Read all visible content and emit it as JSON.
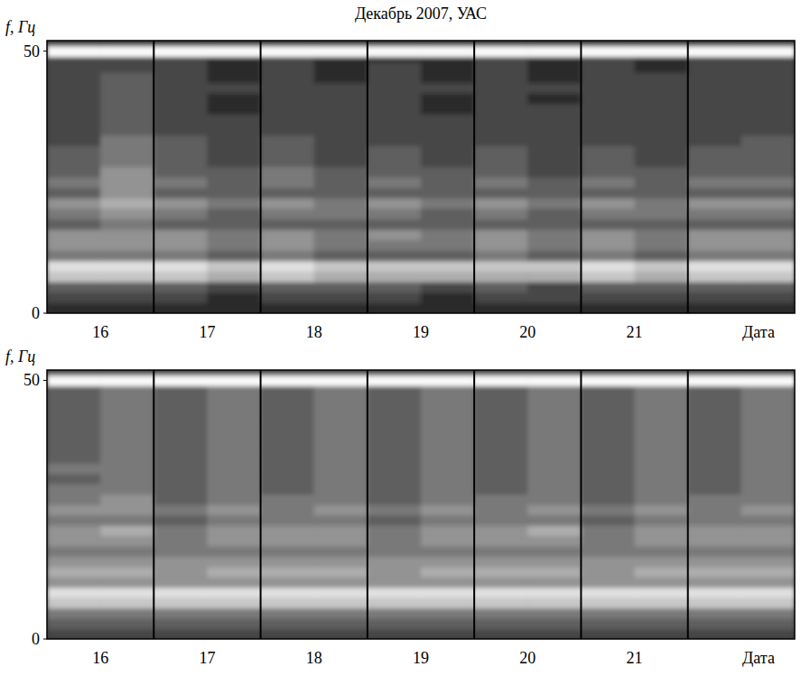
{
  "chart_data": [
    {
      "type": "heatmap",
      "title": "Декабрь 2007, УАС",
      "ylabel": "f, Гц",
      "xlabel": "Дата",
      "xlim": [
        16,
        23
      ],
      "ylim": [
        0,
        52
      ],
      "yticks": [
        0,
        50
      ],
      "xticks": [
        {
          "value": 16.5,
          "label": "16"
        },
        {
          "value": 17.5,
          "label": "17"
        },
        {
          "value": 18.5,
          "label": "18"
        },
        {
          "value": 19.5,
          "label": "19"
        },
        {
          "value": 20.5,
          "label": "20"
        },
        {
          "value": 21.5,
          "label": "21"
        }
      ],
      "day_lines": [
        17,
        18,
        19,
        20,
        21,
        22
      ],
      "grid": true,
      "zlim": [
        0,
        9
      ],
      "x_edges": [
        16,
        16.5,
        17,
        17.5,
        18,
        18.5,
        19,
        19.5,
        20,
        20.5,
        21,
        21.5,
        22,
        22.5,
        23
      ],
      "y_edges": [
        0,
        2,
        4,
        6,
        8,
        10,
        12,
        14,
        16,
        18,
        20,
        22,
        24,
        26,
        28,
        30,
        32,
        34,
        36,
        38,
        40,
        42,
        44,
        46,
        48,
        49,
        51,
        52
      ],
      "cells": [
        [
          1,
          1,
          1,
          1,
          1,
          1,
          1,
          1,
          1,
          1,
          1,
          1,
          1,
          1
        ],
        [
          2,
          2,
          2,
          1,
          2,
          2,
          2,
          1,
          2,
          2,
          2,
          2,
          2,
          2
        ],
        [
          3,
          3,
          3,
          2,
          3,
          3,
          3,
          2,
          3,
          2,
          3,
          3,
          3,
          3
        ],
        [
          7,
          7,
          7,
          6,
          7,
          6,
          6,
          6,
          6,
          6,
          7,
          6,
          7,
          7
        ],
        [
          8,
          8,
          8,
          7,
          8,
          7,
          7,
          7,
          7,
          7,
          8,
          7,
          8,
          8
        ],
        [
          4,
          4,
          4,
          3,
          4,
          3,
          3,
          3,
          4,
          3,
          4,
          3,
          4,
          4
        ],
        [
          5,
          5,
          5,
          4,
          5,
          4,
          4,
          4,
          5,
          4,
          5,
          4,
          5,
          5
        ],
        [
          5,
          5,
          5,
          4,
          5,
          4,
          5,
          4,
          5,
          4,
          5,
          4,
          5,
          5
        ],
        [
          3,
          4,
          3,
          3,
          3,
          3,
          3,
          3,
          3,
          3,
          3,
          3,
          3,
          3
        ],
        [
          4,
          5,
          4,
          3,
          4,
          4,
          4,
          3,
          4,
          3,
          4,
          4,
          4,
          4
        ],
        [
          5,
          6,
          5,
          4,
          5,
          4,
          5,
          4,
          5,
          4,
          5,
          4,
          5,
          5
        ],
        [
          3,
          5,
          3,
          3,
          3,
          3,
          3,
          3,
          3,
          3,
          3,
          3,
          3,
          3
        ],
        [
          4,
          5,
          4,
          3,
          4,
          3,
          4,
          3,
          4,
          3,
          4,
          3,
          4,
          4
        ],
        [
          3,
          5,
          3,
          3,
          4,
          3,
          3,
          3,
          3,
          2,
          3,
          3,
          3,
          3
        ],
        [
          3,
          4,
          3,
          2,
          3,
          2,
          3,
          2,
          3,
          2,
          3,
          2,
          3,
          3
        ],
        [
          3,
          4,
          3,
          2,
          3,
          2,
          3,
          2,
          3,
          2,
          3,
          2,
          3,
          3
        ],
        [
          2,
          4,
          3,
          2,
          3,
          2,
          2,
          2,
          2,
          2,
          2,
          2,
          2,
          3
        ],
        [
          2,
          3,
          2,
          2,
          2,
          2,
          2,
          2,
          2,
          2,
          2,
          2,
          2,
          2
        ],
        [
          2,
          3,
          2,
          2,
          2,
          2,
          2,
          2,
          2,
          2,
          2,
          2,
          2,
          2
        ],
        [
          2,
          3,
          2,
          1,
          2,
          2,
          2,
          1,
          2,
          2,
          2,
          2,
          2,
          2
        ],
        [
          2,
          3,
          2,
          1,
          2,
          2,
          2,
          1,
          2,
          1,
          2,
          2,
          2,
          2
        ],
        [
          2,
          3,
          2,
          2,
          2,
          2,
          2,
          2,
          2,
          2,
          2,
          2,
          2,
          2
        ],
        [
          2,
          3,
          2,
          1,
          2,
          1,
          2,
          1,
          2,
          1,
          2,
          2,
          2,
          2
        ],
        [
          2,
          2,
          2,
          1,
          2,
          1,
          2,
          1,
          2,
          1,
          2,
          1,
          2,
          2
        ],
        [
          2,
          2,
          2,
          1,
          2,
          1,
          1,
          1,
          2,
          1,
          2,
          1,
          2,
          2
        ],
        [
          9,
          9,
          9,
          9,
          9,
          9,
          9,
          9,
          9,
          9,
          9,
          9,
          9,
          9
        ],
        [
          2,
          2,
          2,
          2,
          2,
          2,
          2,
          2,
          2,
          2,
          2,
          2,
          2,
          2
        ]
      ]
    },
    {
      "type": "heatmap",
      "ylabel": "f, Гц",
      "xlabel": "Дата",
      "xlim": [
        16,
        23
      ],
      "ylim": [
        0,
        52
      ],
      "yticks": [
        0,
        50
      ],
      "xticks": [
        {
          "value": 16.5,
          "label": "16"
        },
        {
          "value": 17.5,
          "label": "17"
        },
        {
          "value": 18.5,
          "label": "18"
        },
        {
          "value": 19.5,
          "label": "19"
        },
        {
          "value": 20.5,
          "label": "20"
        },
        {
          "value": 21.5,
          "label": "21"
        }
      ],
      "day_lines": [
        17,
        18,
        19,
        20,
        21,
        22
      ],
      "grid": true,
      "zlim": [
        0,
        9
      ],
      "x_edges": [
        16,
        16.5,
        17,
        17.5,
        18,
        18.5,
        19,
        19.5,
        20,
        20.5,
        21,
        21.5,
        22,
        22.5,
        23
      ],
      "y_edges": [
        0,
        2,
        4,
        6,
        8,
        10,
        12,
        14,
        16,
        18,
        20,
        22,
        24,
        26,
        28,
        30,
        32,
        34,
        36,
        38,
        40,
        42,
        44,
        46,
        48,
        49,
        51,
        52
      ],
      "cells": [
        [
          2,
          2,
          2,
          2,
          2,
          2,
          2,
          2,
          2,
          2,
          2,
          2,
          2,
          2
        ],
        [
          3,
          3,
          3,
          3,
          3,
          3,
          3,
          3,
          3,
          3,
          3,
          3,
          3,
          3
        ],
        [
          4,
          4,
          4,
          4,
          4,
          4,
          4,
          4,
          4,
          4,
          4,
          4,
          4,
          4
        ],
        [
          7,
          7,
          7,
          7,
          7,
          7,
          7,
          7,
          7,
          7,
          7,
          7,
          7,
          7
        ],
        [
          8,
          8,
          8,
          8,
          8,
          8,
          8,
          8,
          8,
          8,
          8,
          8,
          8,
          8
        ],
        [
          5,
          5,
          5,
          5,
          5,
          5,
          5,
          5,
          5,
          5,
          5,
          5,
          5,
          5
        ],
        [
          6,
          6,
          5,
          6,
          6,
          6,
          5,
          6,
          6,
          6,
          5,
          6,
          6,
          6
        ],
        [
          5,
          5,
          5,
          5,
          5,
          5,
          5,
          5,
          5,
          5,
          5,
          5,
          5,
          5
        ],
        [
          4,
          4,
          4,
          4,
          4,
          4,
          4,
          4,
          4,
          4,
          4,
          4,
          4,
          4
        ],
        [
          5,
          5,
          4,
          5,
          5,
          5,
          4,
          5,
          5,
          5,
          4,
          5,
          5,
          5
        ],
        [
          5,
          6,
          4,
          5,
          5,
          5,
          4,
          5,
          5,
          6,
          4,
          5,
          5,
          5
        ],
        [
          4,
          4,
          3,
          4,
          4,
          4,
          3,
          4,
          4,
          4,
          3,
          4,
          4,
          4
        ],
        [
          5,
          5,
          4,
          5,
          4,
          5,
          4,
          5,
          4,
          5,
          4,
          5,
          4,
          5
        ],
        [
          4,
          5,
          3,
          4,
          4,
          4,
          3,
          4,
          4,
          4,
          3,
          4,
          4,
          4
        ],
        [
          4,
          4,
          3,
          4,
          3,
          4,
          3,
          4,
          3,
          4,
          3,
          4,
          3,
          4
        ],
        [
          3,
          4,
          3,
          4,
          3,
          4,
          3,
          4,
          3,
          4,
          3,
          4,
          3,
          4
        ],
        [
          4,
          4,
          3,
          4,
          3,
          4,
          3,
          4,
          3,
          4,
          3,
          4,
          3,
          4
        ],
        [
          3,
          4,
          3,
          4,
          3,
          4,
          3,
          4,
          3,
          4,
          3,
          4,
          3,
          4
        ],
        [
          3,
          4,
          3,
          4,
          3,
          4,
          3,
          4,
          3,
          4,
          3,
          4,
          3,
          4
        ],
        [
          3,
          4,
          3,
          4,
          3,
          4,
          3,
          4,
          3,
          4,
          3,
          4,
          3,
          4
        ],
        [
          3,
          4,
          3,
          4,
          3,
          4,
          3,
          4,
          3,
          4,
          3,
          4,
          3,
          4
        ],
        [
          3,
          4,
          3,
          4,
          3,
          4,
          3,
          4,
          3,
          4,
          3,
          4,
          3,
          4
        ],
        [
          3,
          4,
          3,
          4,
          3,
          4,
          3,
          4,
          3,
          4,
          3,
          4,
          3,
          4
        ],
        [
          3,
          4,
          3,
          4,
          3,
          4,
          3,
          4,
          3,
          4,
          3,
          4,
          3,
          4
        ],
        [
          3,
          4,
          3,
          4,
          3,
          4,
          3,
          4,
          3,
          4,
          3,
          4,
          3,
          4
        ],
        [
          9,
          9,
          9,
          9,
          9,
          9,
          9,
          9,
          9,
          9,
          9,
          9,
          9,
          9
        ],
        [
          3,
          3,
          3,
          3,
          3,
          3,
          3,
          3,
          3,
          3,
          3,
          3,
          3,
          3
        ]
      ]
    }
  ]
}
